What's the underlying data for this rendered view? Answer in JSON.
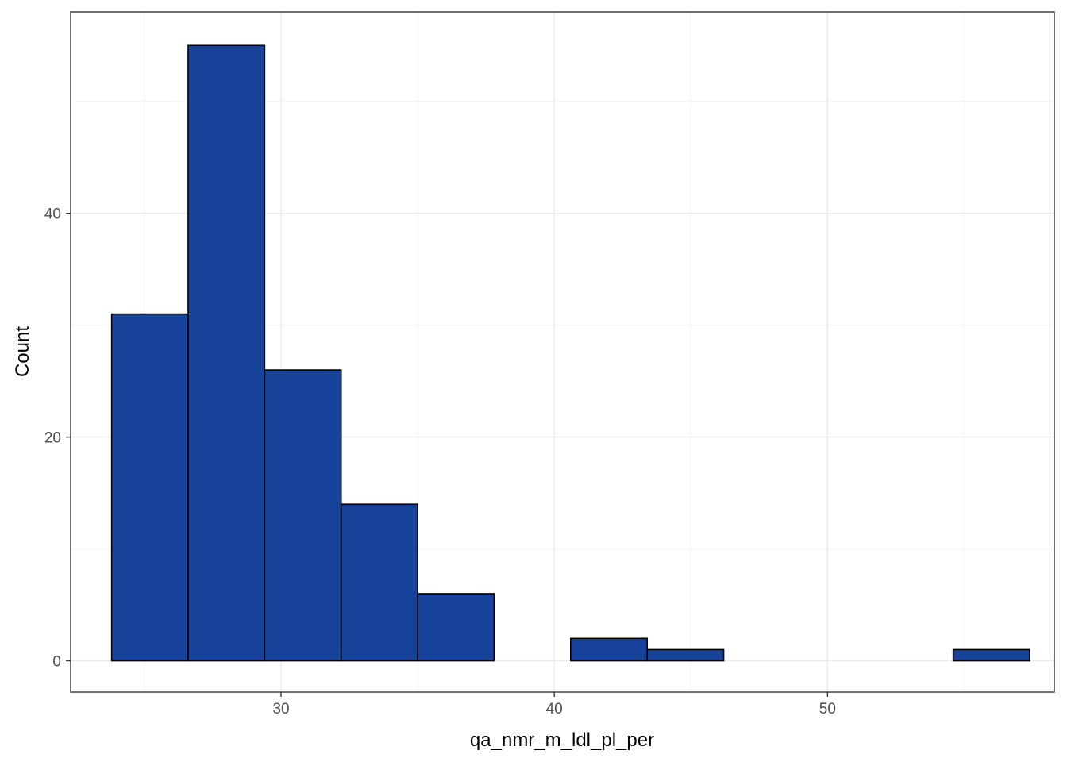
{
  "chart_data": {
    "type": "bar",
    "subtype": "histogram",
    "xlabel": "qa_nmr_m_ldl_pl_per",
    "ylabel": "Count",
    "xlim": [
      22.3,
      58.3
    ],
    "ylim": [
      -2.8,
      58.0
    ],
    "x_ticks": [
      30,
      40,
      50
    ],
    "y_ticks": [
      0,
      20,
      40
    ],
    "grid": true,
    "bar_color": "#17449a",
    "bins": [
      {
        "x0": 23.8,
        "x1": 26.6,
        "count": 31
      },
      {
        "x0": 26.6,
        "x1": 29.4,
        "count": 55
      },
      {
        "x0": 29.4,
        "x1": 32.2,
        "count": 26
      },
      {
        "x0": 32.2,
        "x1": 35.0,
        "count": 14
      },
      {
        "x0": 35.0,
        "x1": 37.8,
        "count": 6
      },
      {
        "x0": 37.8,
        "x1": 40.6,
        "count": 0
      },
      {
        "x0": 40.6,
        "x1": 43.4,
        "count": 2
      },
      {
        "x0": 43.4,
        "x1": 46.2,
        "count": 1
      },
      {
        "x0": 46.2,
        "x1": 49.0,
        "count": 0
      },
      {
        "x0": 49.0,
        "x1": 51.8,
        "count": 0
      },
      {
        "x0": 51.8,
        "x1": 54.6,
        "count": 0
      },
      {
        "x0": 54.6,
        "x1": 57.4,
        "count": 1
      }
    ]
  }
}
